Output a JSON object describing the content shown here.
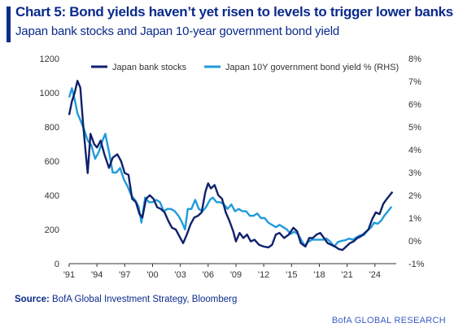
{
  "title": "Chart 5: Bond yields haven’t yet risen to levels to trigger lower banks",
  "subtitle": "Japan bank stocks and Japan 10-year government bond yield",
  "source_label": "Source:",
  "source_text": "BofA Global Investment Strategy, Bloomberg",
  "footer": "BofA GLOBAL RESEARCH",
  "colors": {
    "accent": "#0a2a8c",
    "bank_series": "#10216b",
    "yield_series": "#1f9bdb",
    "axis": "#333333"
  },
  "chart_data": {
    "type": "line",
    "x_range": [
      1991.0,
      2026.3
    ],
    "x_ticks": [
      {
        "value": 1991,
        "label": "'91"
      },
      {
        "value": 1994,
        "label": "'94"
      },
      {
        "value": 1997,
        "label": "'97"
      },
      {
        "value": 2000,
        "label": "'00"
      },
      {
        "value": 2003,
        "label": "'03"
      },
      {
        "value": 2006,
        "label": "'06"
      },
      {
        "value": 2009,
        "label": "'09"
      },
      {
        "value": 2012,
        "label": "'12"
      },
      {
        "value": 2015,
        "label": "'15"
      },
      {
        "value": 2018,
        "label": "'18"
      },
      {
        "value": 2021,
        "label": "'21"
      },
      {
        "value": 2024,
        "label": "'24"
      }
    ],
    "y_left": {
      "range": [
        0,
        1200
      ],
      "ticks": [
        0,
        200,
        400,
        600,
        800,
        1000,
        1200
      ]
    },
    "y_right": {
      "range": [
        -1,
        8
      ],
      "ticks": [
        "-1%",
        "0%",
        "1%",
        "2%",
        "3%",
        "4%",
        "5%",
        "6%",
        "7%",
        "8%"
      ]
    },
    "grid": false,
    "legend_position": "top",
    "series": [
      {
        "name": "Japan bank stocks",
        "axis": "left",
        "points": [
          [
            1991.0,
            870
          ],
          [
            1991.3,
            950
          ],
          [
            1991.6,
            1000
          ],
          [
            1991.9,
            1070
          ],
          [
            1992.2,
            1030
          ],
          [
            1992.5,
            820
          ],
          [
            1992.8,
            640
          ],
          [
            1993.0,
            530
          ],
          [
            1993.3,
            760
          ],
          [
            1993.7,
            700
          ],
          [
            1994.0,
            680
          ],
          [
            1994.4,
            720
          ],
          [
            1994.8,
            640
          ],
          [
            1995.3,
            560
          ],
          [
            1995.7,
            620
          ],
          [
            1996.2,
            640
          ],
          [
            1996.6,
            600
          ],
          [
            1997.0,
            530
          ],
          [
            1997.4,
            520
          ],
          [
            1997.8,
            380
          ],
          [
            1998.2,
            360
          ],
          [
            1998.6,
            290
          ],
          [
            1998.9,
            270
          ],
          [
            1999.3,
            380
          ],
          [
            1999.7,
            400
          ],
          [
            2000.1,
            380
          ],
          [
            2000.5,
            330
          ],
          [
            2000.9,
            320
          ],
          [
            2001.3,
            300
          ],
          [
            2001.7,
            250
          ],
          [
            2002.1,
            210
          ],
          [
            2002.5,
            200
          ],
          [
            2002.9,
            160
          ],
          [
            2003.3,
            120
          ],
          [
            2003.7,
            170
          ],
          [
            2004.1,
            230
          ],
          [
            2004.5,
            270
          ],
          [
            2004.9,
            280
          ],
          [
            2005.3,
            300
          ],
          [
            2005.7,
            420
          ],
          [
            2006.0,
            470
          ],
          [
            2006.3,
            440
          ],
          [
            2006.7,
            460
          ],
          [
            2007.1,
            400
          ],
          [
            2007.5,
            380
          ],
          [
            2007.9,
            300
          ],
          [
            2008.3,
            250
          ],
          [
            2008.7,
            190
          ],
          [
            2009.0,
            130
          ],
          [
            2009.4,
            180
          ],
          [
            2009.8,
            150
          ],
          [
            2010.2,
            170
          ],
          [
            2010.6,
            130
          ],
          [
            2011.0,
            140
          ],
          [
            2011.5,
            110
          ],
          [
            2012.0,
            100
          ],
          [
            2012.5,
            95
          ],
          [
            2012.9,
            110
          ],
          [
            2013.3,
            170
          ],
          [
            2013.7,
            180
          ],
          [
            2014.2,
            150
          ],
          [
            2014.7,
            170
          ],
          [
            2015.2,
            210
          ],
          [
            2015.6,
            190
          ],
          [
            2016.0,
            120
          ],
          [
            2016.5,
            100
          ],
          [
            2016.9,
            150
          ],
          [
            2017.3,
            150
          ],
          [
            2017.7,
            170
          ],
          [
            2018.1,
            180
          ],
          [
            2018.5,
            150
          ],
          [
            2018.9,
            120
          ],
          [
            2019.3,
            110
          ],
          [
            2019.7,
            100
          ],
          [
            2020.1,
            85
          ],
          [
            2020.5,
            80
          ],
          [
            2020.9,
            100
          ],
          [
            2021.3,
            120
          ],
          [
            2021.7,
            130
          ],
          [
            2022.1,
            150
          ],
          [
            2022.5,
            160
          ],
          [
            2022.9,
            180
          ],
          [
            2023.3,
            200
          ],
          [
            2023.7,
            260
          ],
          [
            2024.1,
            300
          ],
          [
            2024.5,
            290
          ],
          [
            2024.9,
            350
          ],
          [
            2025.3,
            380
          ],
          [
            2025.6,
            400
          ],
          [
            2025.9,
            420
          ]
        ]
      },
      {
        "name": "Japan 10Y government bond yield % (RHS)",
        "axis": "right",
        "points": [
          [
            1991.0,
            6.3
          ],
          [
            1991.3,
            6.7
          ],
          [
            1991.6,
            6.2
          ],
          [
            1991.9,
            5.6
          ],
          [
            1992.2,
            5.3
          ],
          [
            1992.6,
            4.9
          ],
          [
            1993.0,
            4.4
          ],
          [
            1993.4,
            4.2
          ],
          [
            1993.8,
            3.6
          ],
          [
            1994.2,
            3.9
          ],
          [
            1994.6,
            4.4
          ],
          [
            1994.9,
            4.7
          ],
          [
            1995.3,
            3.9
          ],
          [
            1995.7,
            3.0
          ],
          [
            1996.1,
            3.0
          ],
          [
            1996.5,
            3.2
          ],
          [
            1996.9,
            2.7
          ],
          [
            1997.3,
            2.4
          ],
          [
            1997.7,
            2.0
          ],
          [
            1998.1,
            1.8
          ],
          [
            1998.5,
            1.5
          ],
          [
            1998.8,
            0.8
          ],
          [
            1999.2,
            1.9
          ],
          [
            1999.6,
            1.7
          ],
          [
            2000.0,
            1.7
          ],
          [
            2000.4,
            1.8
          ],
          [
            2000.8,
            1.7
          ],
          [
            2001.2,
            1.3
          ],
          [
            2001.6,
            1.4
          ],
          [
            2002.0,
            1.4
          ],
          [
            2002.4,
            1.3
          ],
          [
            2002.8,
            1.1
          ],
          [
            2003.2,
            0.8
          ],
          [
            2003.5,
            0.5
          ],
          [
            2003.8,
            1.4
          ],
          [
            2004.2,
            1.4
          ],
          [
            2004.6,
            1.8
          ],
          [
            2005.0,
            1.4
          ],
          [
            2005.4,
            1.3
          ],
          [
            2005.8,
            1.5
          ],
          [
            2006.2,
            1.8
          ],
          [
            2006.5,
            1.9
          ],
          [
            2006.9,
            1.7
          ],
          [
            2007.3,
            1.7
          ],
          [
            2007.7,
            1.6
          ],
          [
            2008.1,
            1.4
          ],
          [
            2008.5,
            1.6
          ],
          [
            2008.9,
            1.3
          ],
          [
            2009.3,
            1.4
          ],
          [
            2009.7,
            1.3
          ],
          [
            2010.1,
            1.3
          ],
          [
            2010.5,
            1.1
          ],
          [
            2010.9,
            1.1
          ],
          [
            2011.3,
            1.2
          ],
          [
            2011.7,
            1.0
          ],
          [
            2012.1,
            1.0
          ],
          [
            2012.5,
            0.8
          ],
          [
            2012.9,
            0.7
          ],
          [
            2013.3,
            0.6
          ],
          [
            2013.7,
            0.7
          ],
          [
            2014.1,
            0.6
          ],
          [
            2014.5,
            0.5
          ],
          [
            2014.9,
            0.3
          ],
          [
            2015.3,
            0.4
          ],
          [
            2015.7,
            0.3
          ],
          [
            2016.1,
            0.0
          ],
          [
            2016.4,
            -0.2
          ],
          [
            2016.8,
            -0.05
          ],
          [
            2017.2,
            0.05
          ],
          [
            2017.6,
            0.05
          ],
          [
            2018.0,
            0.05
          ],
          [
            2018.4,
            0.05
          ],
          [
            2018.8,
            0.1
          ],
          [
            2019.2,
            -0.05
          ],
          [
            2019.6,
            -0.25
          ],
          [
            2020.0,
            -0.05
          ],
          [
            2020.4,
            0.0
          ],
          [
            2020.8,
            0.03
          ],
          [
            2021.2,
            0.1
          ],
          [
            2021.6,
            0.05
          ],
          [
            2022.0,
            0.15
          ],
          [
            2022.4,
            0.25
          ],
          [
            2022.8,
            0.25
          ],
          [
            2023.2,
            0.45
          ],
          [
            2023.6,
            0.6
          ],
          [
            2023.9,
            0.8
          ],
          [
            2024.3,
            0.75
          ],
          [
            2024.7,
            0.9
          ],
          [
            2025.0,
            1.1
          ],
          [
            2025.4,
            1.3
          ],
          [
            2025.8,
            1.5
          ]
        ]
      }
    ]
  }
}
